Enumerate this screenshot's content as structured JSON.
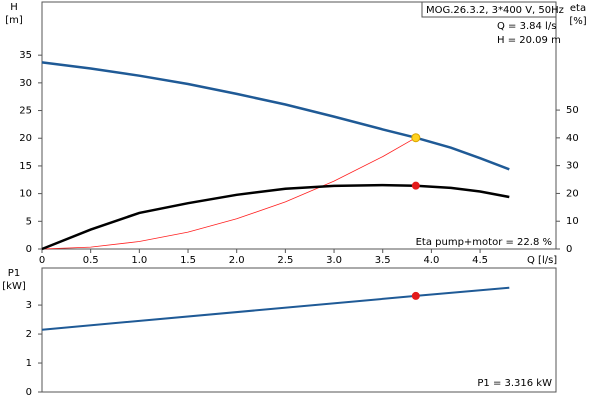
{
  "chart_data": [
    {
      "type": "line",
      "box_title": "MOG.26.3.2, 3*400 V, 50Hz",
      "annotations": [
        "Q = 3.84 l/s",
        "H = 20.09 m",
        "Eta pump+motor = 22.8 %"
      ],
      "ylabel": [
        "H",
        "[m]"
      ],
      "y2label": [
        "eta",
        "[%]"
      ],
      "xlabel": "Q [l/s]",
      "xlim": [
        0,
        5.28
      ],
      "ylim": [
        0,
        44.6
      ],
      "y2lim": [
        0,
        88.9
      ],
      "xticks": [
        0,
        0.5,
        {
          "value": 1,
          "label": "1.0"
        },
        1.5,
        {
          "value": 2,
          "label": "2.0"
        },
        2.5,
        {
          "value": 3,
          "label": "3.0"
        },
        3.5,
        {
          "value": 4,
          "label": "4.0"
        },
        4.5
      ],
      "yticks": [
        0,
        5,
        10,
        15,
        20,
        25,
        30,
        35
      ],
      "y2ticks": [
        0,
        10,
        20,
        30,
        40,
        50
      ],
      "series": [
        {
          "color": "#1f5a96",
          "width": 2.5,
          "x": [
            0,
            0.5,
            1,
            1.5,
            2,
            2.5,
            3,
            3.5,
            3.84,
            4.2,
            4.5,
            4.8
          ],
          "values": [
            33.7,
            32.6,
            31.3,
            29.8,
            28.0,
            26.1,
            23.9,
            21.6,
            20.09,
            18.3,
            16.4,
            14.4
          ]
        },
        {
          "color": "#ff2020",
          "width": 0.8,
          "x": [
            0,
            0.5,
            1,
            1.5,
            2,
            2.5,
            3,
            3.5,
            3.84
          ],
          "values": [
            0,
            0.34,
            1.36,
            3.06,
            5.45,
            8.51,
            12.26,
            16.68,
            20.09
          ]
        },
        {
          "color": "#000000",
          "width": 2.5,
          "axis": "y2",
          "x": [
            0,
            0.5,
            1,
            1.5,
            2,
            2.5,
            3,
            3.5,
            3.84,
            4.2,
            4.5,
            4.8
          ],
          "values": [
            0,
            7,
            13,
            16.5,
            19.5,
            21.7,
            22.7,
            23,
            22.8,
            22,
            20.7,
            18.7
          ]
        }
      ],
      "markers": [
        {
          "x": 3.84,
          "y": 20.09,
          "color": "#ffd21f"
        },
        {
          "x": 3.84,
          "y": 22.8,
          "axis": "y2",
          "color": "#e31b1b"
        }
      ]
    },
    {
      "type": "line",
      "ylabel": [
        "P1",
        "[kW]"
      ],
      "annotations": [
        "P1 = 3.316 kW"
      ],
      "xlim": [
        0,
        5.28
      ],
      "ylim": [
        0,
        4.28
      ],
      "yticks": [
        0,
        1,
        2,
        3
      ],
      "series": [
        {
          "color": "#1f5a96",
          "width": 2,
          "x": [
            0,
            3.84,
            4.8
          ],
          "values": [
            2.15,
            3.316,
            3.6
          ]
        }
      ],
      "markers": [
        {
          "x": 3.84,
          "y": 3.316,
          "color": "#e31b1b"
        }
      ]
    }
  ]
}
